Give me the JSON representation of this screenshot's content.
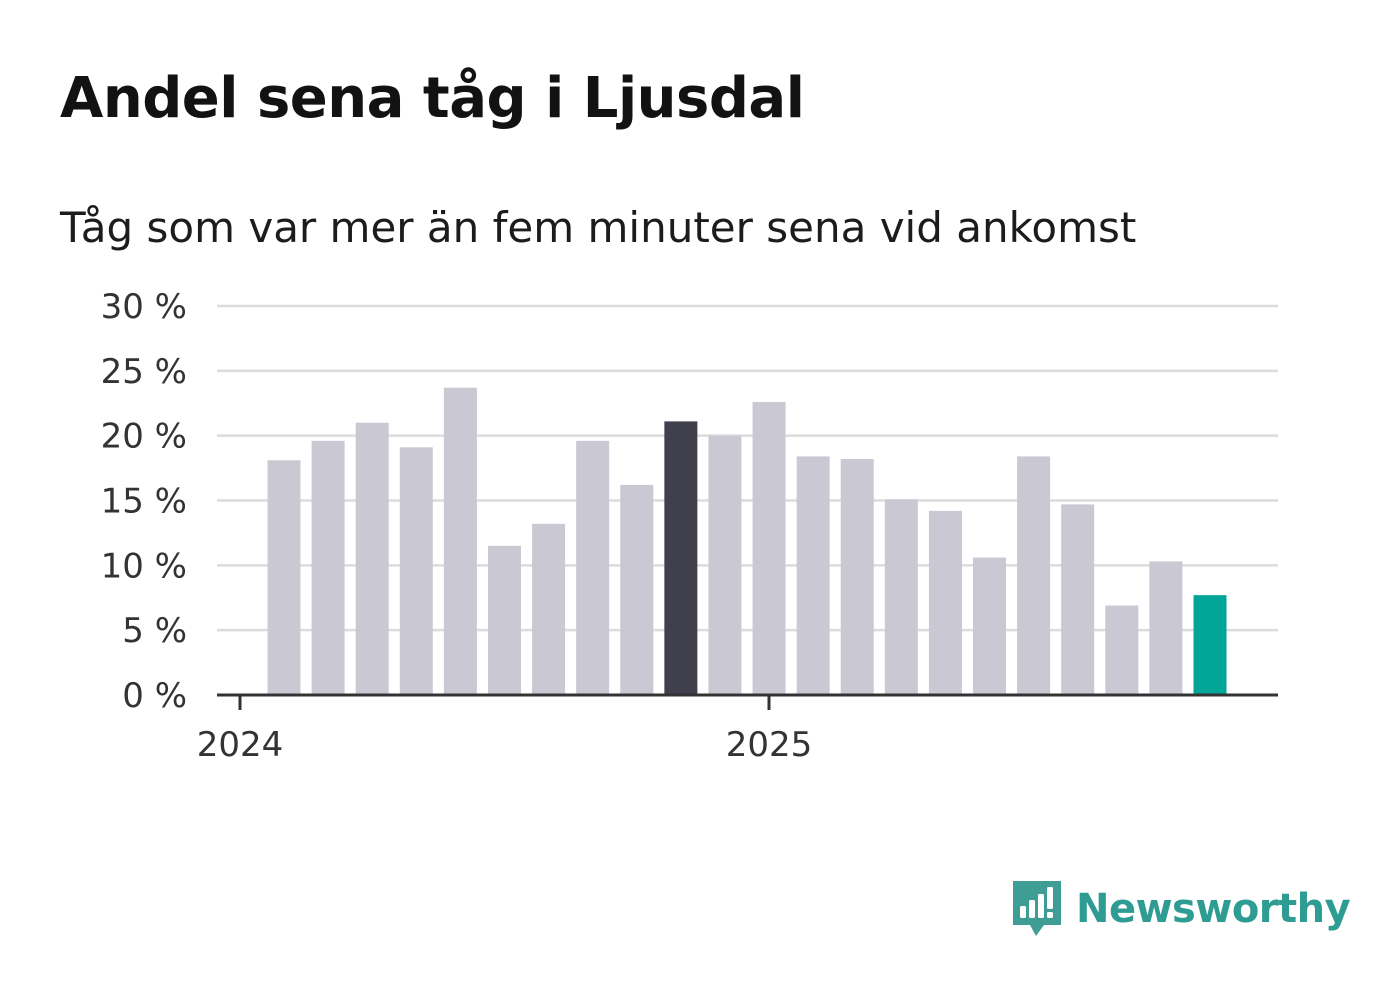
{
  "header": {
    "title": "Andel sena tåg i Ljusdal",
    "subtitle": "Tåg som var mer än fem minuter sena vid ankomst"
  },
  "chart_data": {
    "type": "bar",
    "title": "Andel sena tåg i Ljusdal",
    "subtitle": "Tåg som var mer än fem minuter sena vid ankomst",
    "xlabel": "",
    "ylabel": "",
    "ylim": [
      0,
      30
    ],
    "yticks": [
      0,
      5,
      10,
      15,
      20,
      25,
      30
    ],
    "ytick_labels": [
      "0 %",
      "5 %",
      "10 %",
      "15 %",
      "20 %",
      "25 %",
      "30 %"
    ],
    "xtick_labels": [
      "2024",
      "2025"
    ],
    "grid": true,
    "categories": [
      "2024-01",
      "2024-02",
      "2024-03",
      "2024-04",
      "2024-05",
      "2024-06",
      "2024-07",
      "2024-08",
      "2024-09",
      "2024-10",
      "2024-11",
      "2024-12",
      "2025-01",
      "2025-02",
      "2025-03",
      "2025-04",
      "2025-05",
      "2025-06",
      "2025-07",
      "2025-08",
      "2025-09",
      "2025-10"
    ],
    "values": [
      18.1,
      19.6,
      21.0,
      19.1,
      23.7,
      11.5,
      13.2,
      19.6,
      16.2,
      21.1,
      20.0,
      22.6,
      18.4,
      18.2,
      15.1,
      14.2,
      10.6,
      18.4,
      14.7,
      6.9,
      10.3,
      7.7
    ],
    "colors": {
      "default": "#c9c8d3",
      "highlight_dark": "#403f4c",
      "highlight_latest": "#00a598"
    },
    "highlight_dark_index": 9,
    "highlight_latest_index": 21
  },
  "logo": {
    "text": "Newsworthy",
    "icon": "newsworthy-logo-icon"
  }
}
